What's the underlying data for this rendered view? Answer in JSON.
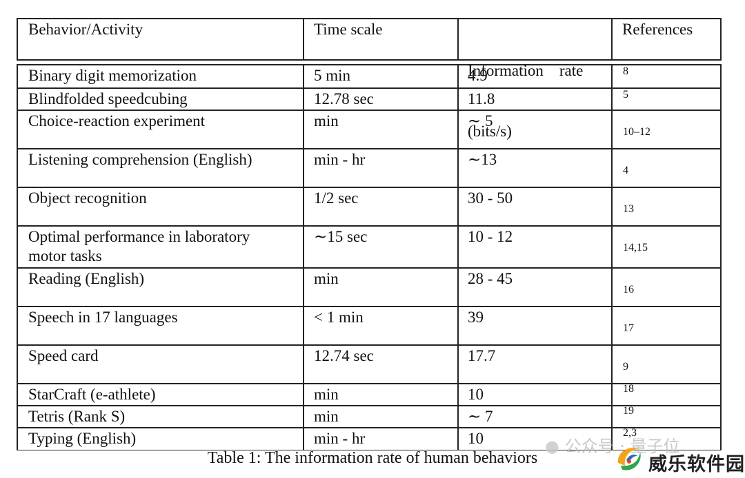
{
  "header": {
    "col1": "Behavior/Activity",
    "col2": "Time scale",
    "col3_line1": "Information    rate",
    "col3_line2": "(bits/s)",
    "col4": "References"
  },
  "rows": [
    {
      "activity": "Binary digit memorization",
      "time": "5 min",
      "rate": "4.9",
      "ref": "8"
    },
    {
      "activity": "Blindfolded speedcubing",
      "time": "12.78 sec",
      "rate": "11.8",
      "ref": "5"
    },
    {
      "activity": "Choice-reaction experiment",
      "time": "min",
      "rate": "∼ 5",
      "ref": "10–12"
    },
    {
      "activity": "Listening comprehension (English)",
      "time": "min - hr",
      "rate": "∼13",
      "ref": "4"
    },
    {
      "activity": "Object recognition",
      "time": "1/2 sec",
      "rate": "30 - 50",
      "ref": "13"
    },
    {
      "activity": "Optimal performance in laboratory",
      "activity2": "motor tasks",
      "time": "∼15 sec",
      "rate": "10 - 12",
      "ref": "14,15"
    },
    {
      "activity": "Reading (English)",
      "time": "min",
      "rate": "28 - 45",
      "ref": "16"
    },
    {
      "activity": "Speech in 17 languages",
      "time": "< 1 min",
      "rate": "39",
      "ref": "17"
    },
    {
      "activity": "Speed card",
      "time": "12.74 sec",
      "rate": "17.7",
      "ref": "9"
    },
    {
      "activity": "StarCraft (e-athlete)",
      "time": "min",
      "rate": "10",
      "ref": "18"
    },
    {
      "activity": "Tetris (Rank S)",
      "time": "min",
      "rate": "∼ 7",
      "ref": "19"
    },
    {
      "activity": "Typing (English)",
      "time": "min - hr",
      "rate": "10",
      "ref": "2,3"
    }
  ],
  "caption": "Table 1: The information rate of human behaviors",
  "watermark": {
    "wechat_text": "公众号 · 量子位",
    "logo_text": "威乐软件园"
  }
}
